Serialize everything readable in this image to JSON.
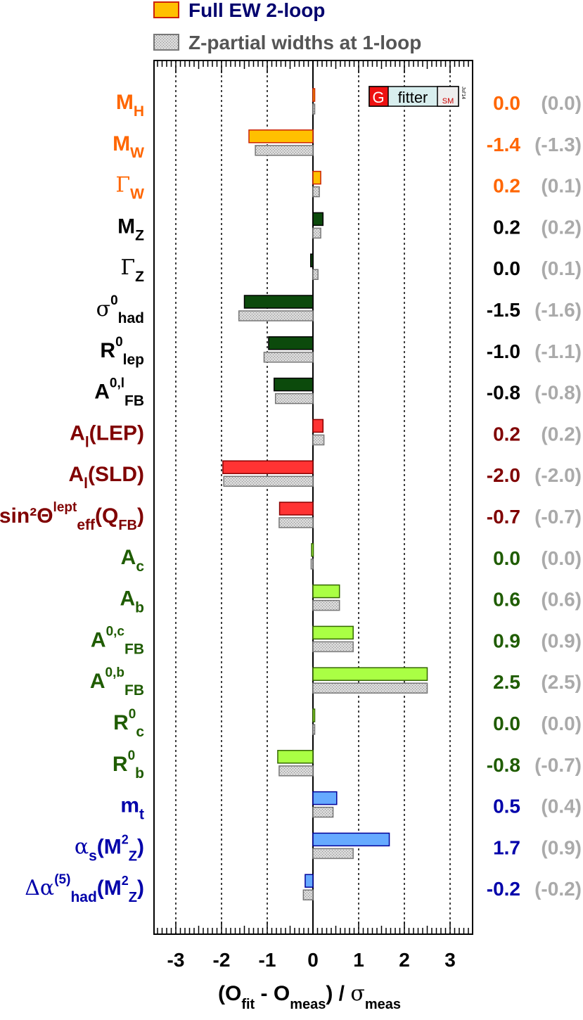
{
  "chart_data": {
    "type": "bar",
    "orientation": "horizontal",
    "xlabel": "(O_fit - O_meas) / σ_meas",
    "xlim": [
      -3.5,
      3.5
    ],
    "xticks": [
      -3,
      -2,
      -1,
      0,
      1,
      2,
      3
    ],
    "x_tick_labels": [
      "-3",
      "-2",
      "-1",
      "0",
      "1",
      "2",
      "3"
    ],
    "grid_x": true,
    "legend_position": "top",
    "legend": [
      {
        "label": "Full EW 2-loop",
        "color": "#ffc000",
        "edge": "#cc2200"
      },
      {
        "label": "Z-partial widths at 1-loop",
        "color": "#c8c8c8",
        "edge": "#777777",
        "hatched": true
      }
    ],
    "logo": {
      "letter": "G",
      "word": "fitter",
      "sub": "SM",
      "date": "Jul'14"
    },
    "series": [
      {
        "name": "Full EW 2-loop",
        "values": [
          0.03,
          -1.4,
          0.17,
          0.22,
          -0.05,
          -1.5,
          -0.97,
          -0.85,
          0.22,
          -1.97,
          -0.73,
          -0.03,
          0.58,
          0.88,
          2.5,
          0.03,
          -0.77,
          0.52,
          1.67,
          -0.17
        ]
      },
      {
        "name": "Z-partial widths at 1-loop",
        "values": [
          0.03,
          -1.26,
          0.14,
          0.17,
          0.11,
          -1.62,
          -1.07,
          -0.82,
          0.24,
          -1.95,
          -0.74,
          -0.04,
          0.58,
          0.88,
          2.5,
          0.03,
          -0.74,
          0.44,
          0.88,
          -0.21
        ]
      }
    ],
    "rows": [
      {
        "label_main": "M",
        "label_sub": "H",
        "label_sup": "",
        "label_suffix": "",
        "value_full": "0.0",
        "value_partial": "(0.0)",
        "bar_color": "#ffc000",
        "bar_edge": "#cc2200",
        "label_color": "#ff6600"
      },
      {
        "label_main": "M",
        "label_sub": "W",
        "label_sup": "",
        "label_suffix": "",
        "value_full": "-1.4",
        "value_partial": "(-1.3)",
        "bar_color": "#ffc000",
        "bar_edge": "#cc2200",
        "label_color": "#ff6600"
      },
      {
        "label_main": "Γ",
        "label_sub": "W",
        "label_sup": "",
        "label_suffix": "",
        "main_symbol": true,
        "value_full": "0.2",
        "value_partial": "(0.1)",
        "bar_color": "#ffc000",
        "bar_edge": "#cc2200",
        "label_color": "#ff6600"
      },
      {
        "label_main": "M",
        "label_sub": "Z",
        "label_sup": "",
        "label_suffix": "",
        "value_full": "0.2",
        "value_partial": "(0.2)",
        "bar_color": "#0c4a0c",
        "bar_edge": "#000000",
        "label_color": "#000000"
      },
      {
        "label_main": "Γ",
        "label_sub": "Z",
        "label_sup": "",
        "label_suffix": "",
        "main_symbol": true,
        "value_full": "0.0",
        "value_partial": "(0.1)",
        "bar_color": "#0c4a0c",
        "bar_edge": "#000000",
        "label_color": "#000000"
      },
      {
        "label_main": "σ",
        "label_sub": "had",
        "label_sup": "0",
        "label_suffix": "",
        "main_symbol": true,
        "value_full": "-1.5",
        "value_partial": "(-1.6)",
        "bar_color": "#0c4a0c",
        "bar_edge": "#000000",
        "label_color": "#000000"
      },
      {
        "label_main": "R",
        "label_sub": "lep",
        "label_sup": "0",
        "label_suffix": "",
        "value_full": "-1.0",
        "value_partial": "(-1.1)",
        "bar_color": "#0c4a0c",
        "bar_edge": "#000000",
        "label_color": "#000000"
      },
      {
        "label_main": "A",
        "label_sub": "FB",
        "label_sup": "0,l",
        "label_suffix": "",
        "value_full": "-0.8",
        "value_partial": "(-0.8)",
        "bar_color": "#0c4a0c",
        "bar_edge": "#000000",
        "label_color": "#000000"
      },
      {
        "label_main": "A",
        "label_sub": "l",
        "label_sup": "",
        "label_suffix": "(LEP)",
        "value_full": "0.2",
        "value_partial": "(0.2)",
        "bar_color": "#ff3333",
        "bar_edge": "#880000",
        "label_color": "#800000"
      },
      {
        "label_main": "A",
        "label_sub": "l",
        "label_sup": "",
        "label_suffix": "(SLD)",
        "value_full": "-2.0",
        "value_partial": "(-2.0)",
        "bar_color": "#ff3333",
        "bar_edge": "#880000",
        "label_color": "#800000"
      },
      {
        "label_main": "sin²Θ",
        "label_sub": "eff",
        "label_sup": "lept",
        "label_suffix": "(Q",
        "label_suffix_sub": "FB",
        "label_suffix_end": ")",
        "value_full": "-0.7",
        "value_partial": "(-0.7)",
        "bar_color": "#ff3333",
        "bar_edge": "#880000",
        "label_color": "#800000"
      },
      {
        "label_main": "A",
        "label_sub": "c",
        "label_sup": "",
        "label_suffix": "",
        "value_full": "0.0",
        "value_partial": "(0.0)",
        "bar_color": "#aaff44",
        "bar_edge": "#336600",
        "label_color": "#1f5c00"
      },
      {
        "label_main": "A",
        "label_sub": "b",
        "label_sup": "",
        "label_suffix": "",
        "value_full": "0.6",
        "value_partial": "(0.6)",
        "bar_color": "#aaff44",
        "bar_edge": "#336600",
        "label_color": "#1f5c00"
      },
      {
        "label_main": "A",
        "label_sub": "FB",
        "label_sup": "0,c",
        "label_suffix": "",
        "value_full": "0.9",
        "value_partial": "(0.9)",
        "bar_color": "#aaff44",
        "bar_edge": "#336600",
        "label_color": "#1f5c00"
      },
      {
        "label_main": "A",
        "label_sub": "FB",
        "label_sup": "0,b",
        "label_suffix": "",
        "value_full": "2.5",
        "value_partial": "(2.5)",
        "bar_color": "#aaff44",
        "bar_edge": "#336600",
        "label_color": "#1f5c00"
      },
      {
        "label_main": "R",
        "label_sub": "c",
        "label_sup": "0",
        "label_suffix": "",
        "value_full": "0.0",
        "value_partial": "(0.0)",
        "bar_color": "#aaff44",
        "bar_edge": "#336600",
        "label_color": "#1f5c00"
      },
      {
        "label_main": "R",
        "label_sub": "b",
        "label_sup": "0",
        "label_suffix": "",
        "value_full": "-0.8",
        "value_partial": "(-0.7)",
        "bar_color": "#aaff44",
        "bar_edge": "#336600",
        "label_color": "#1f5c00"
      },
      {
        "label_main": "m",
        "label_sub": "t",
        "label_sup": "",
        "label_suffix": "",
        "value_full": "0.5",
        "value_partial": "(0.4)",
        "bar_color": "#66aaff",
        "bar_edge": "#000099",
        "label_color": "#0000aa"
      },
      {
        "label_main": "α",
        "label_sub": "s",
        "label_sup": "",
        "label_suffix": "(M",
        "label_suffix_sup": "2",
        "label_suffix_sub": "Z",
        "label_suffix_end": ")",
        "main_symbol": true,
        "value_full": "1.7",
        "value_partial": "(0.9)",
        "bar_color": "#66aaff",
        "bar_edge": "#000099",
        "label_color": "#0000aa"
      },
      {
        "label_main": "Δα",
        "label_sub": "had",
        "label_sup": "(5)",
        "label_suffix": "(M",
        "label_suffix_sup": "2",
        "label_suffix_sub": "Z",
        "label_suffix_end": ")",
        "main_symbol": true,
        "value_full": "-0.2",
        "value_partial": "(-0.2)",
        "bar_color": "#66aaff",
        "bar_edge": "#000099",
        "label_color": "#0000aa"
      }
    ],
    "partial_value_color": "#aaaaaa",
    "partial_bar_color": "#cccccc",
    "partial_bar_edge": "#777777",
    "legend_text_colors": [
      "#00006e",
      "#555555"
    ]
  }
}
